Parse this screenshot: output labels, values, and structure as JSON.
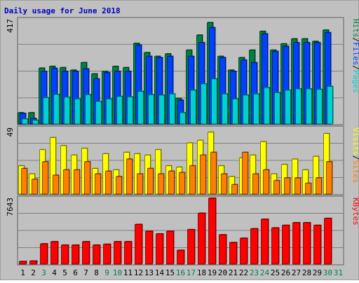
{
  "title": "Daily usage for June 2018",
  "colors": {
    "background": "#C0C0C0",
    "frame_bg": "#FFFFFF",
    "title": "#0000C0",
    "pages": "#00D0D0",
    "files": "#0040FF",
    "hits": "#008040",
    "visits": "#FFFF00",
    "sites": "#FF8000",
    "kbytes": "#FF0000",
    "weekday_text": "#000000",
    "weekend_text": "#00804A",
    "gridline": "#808080"
  },
  "chart_data": [
    {
      "type": "bar",
      "name": "hits-files-pages",
      "categories": [
        "1",
        "2",
        "3",
        "4",
        "5",
        "6",
        "7",
        "8",
        "9",
        "10",
        "11",
        "12",
        "13",
        "14",
        "15",
        "16",
        "17",
        "18",
        "19",
        "20",
        "21",
        "22",
        "23",
        "24",
        "25",
        "26",
        "27",
        "28",
        "29",
        "30",
        "31"
      ],
      "ymax_label": "417",
      "ymax": 417,
      "series": [
        {
          "name": "Hits",
          "values": [
            45,
            45,
            223,
            230,
            225,
            215,
            245,
            200,
            210,
            230,
            225,
            322,
            285,
            270,
            280,
            102,
            295,
            355,
            405,
            270,
            215,
            265,
            295,
            370,
            295,
            320,
            340,
            340,
            330,
            375,
            0
          ]
        },
        {
          "name": "Files",
          "values": [
            42,
            22,
            210,
            222,
            210,
            210,
            220,
            180,
            205,
            210,
            210,
            315,
            270,
            265,
            270,
            95,
            270,
            325,
            385,
            265,
            210,
            255,
            245,
            360,
            290,
            310,
            325,
            325,
            325,
            365,
            0
          ]
        },
        {
          "name": "Pages",
          "values": [
            20,
            15,
            105,
            118,
            107,
            100,
            117,
            90,
            100,
            110,
            108,
            130,
            117,
            115,
            120,
            45,
            135,
            160,
            180,
            120,
            100,
            115,
            120,
            145,
            125,
            135,
            140,
            140,
            138,
            150,
            0
          ]
        }
      ],
      "legend_labels": [
        "Pages",
        "Files",
        "Hits"
      ]
    },
    {
      "type": "bar",
      "name": "visits-sites",
      "categories": [
        "1",
        "2",
        "3",
        "4",
        "5",
        "6",
        "7",
        "8",
        "9",
        "10",
        "11",
        "12",
        "13",
        "14",
        "15",
        "16",
        "17",
        "18",
        "19",
        "20",
        "21",
        "22",
        "23",
        "24",
        "25",
        "26",
        "27",
        "28",
        "29",
        "30",
        "31"
      ],
      "ymax_label": "49",
      "ymax": 49,
      "series": [
        {
          "name": "Visits",
          "values": [
            21,
            15,
            33,
            42,
            36,
            29,
            34,
            19,
            30,
            18,
            31,
            30,
            29,
            33,
            21,
            20,
            38,
            40,
            46,
            21,
            13,
            27,
            29,
            39,
            15,
            22,
            26,
            18,
            28,
            45,
            0
          ]
        },
        {
          "name": "Sites",
          "values": [
            19,
            11,
            24,
            14,
            18,
            18,
            24,
            15,
            17,
            13,
            26,
            15,
            19,
            15,
            17,
            16,
            21,
            29,
            31,
            15,
            7,
            31,
            15,
            18,
            10,
            12,
            12,
            8,
            12,
            24,
            0
          ]
        }
      ],
      "legend_labels": [
        "Sites",
        "Visits"
      ]
    },
    {
      "type": "bar",
      "name": "kbytes",
      "categories": [
        "1",
        "2",
        "3",
        "4",
        "5",
        "6",
        "7",
        "8",
        "9",
        "10",
        "11",
        "12",
        "13",
        "14",
        "15",
        "16",
        "17",
        "18",
        "19",
        "20",
        "21",
        "22",
        "23",
        "24",
        "25",
        "26",
        "27",
        "28",
        "29",
        "30",
        "31"
      ],
      "ymax_label": "7643",
      "ymax": 7643,
      "series": [
        {
          "name": "KBytes",
          "values": [
            300,
            350,
            2350,
            2600,
            2200,
            2200,
            2600,
            2200,
            2300,
            2600,
            2600,
            4600,
            3800,
            3500,
            3800,
            1600,
            4000,
            5900,
            7643,
            3400,
            2500,
            3000,
            4100,
            5200,
            4200,
            4500,
            4800,
            4800,
            4500,
            5300,
            0
          ]
        }
      ],
      "legend_labels": [
        "KBytes"
      ]
    }
  ],
  "legend_separator": "/",
  "weekend_days": [
    "3",
    "9",
    "10",
    "16",
    "17",
    "23",
    "24",
    "30",
    "31"
  ]
}
